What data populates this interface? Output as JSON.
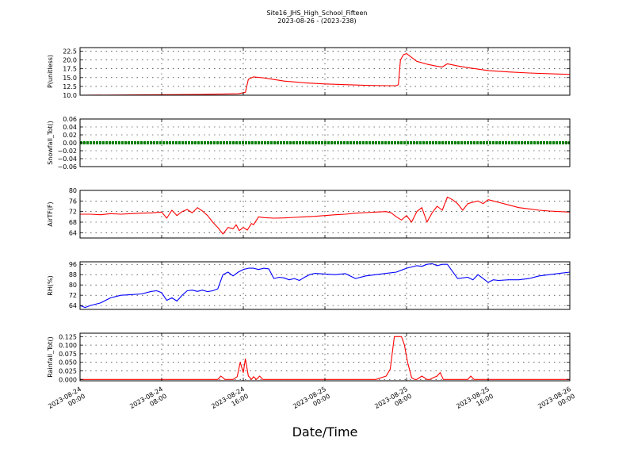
{
  "figure": {
    "title_line1": "Site16_JHS_High_School_Fifteen",
    "title_line2": "2023-08-26 - (2023-238)",
    "xlabel": "Date/Time"
  },
  "chart_data": [
    {
      "type": "line",
      "id": "pu",
      "ylabel": "P(unitless)",
      "color": "#ff0000",
      "ylim": [
        10.0,
        23.5
      ],
      "yticks": [
        "10.0",
        "12.5",
        "15.0",
        "17.5",
        "20.0",
        "22.5"
      ],
      "ytick_values": [
        10.0,
        12.5,
        15.0,
        17.5,
        20.0,
        22.5
      ],
      "xlim": [
        0,
        48
      ],
      "grid": true,
      "series": [
        {
          "x": [
            0,
            6,
            12,
            15.5,
            16.2,
            16.5,
            17,
            18,
            20,
            22,
            24,
            26,
            28,
            30,
            31,
            31.2,
            31.4,
            31.7,
            32,
            33,
            34,
            35,
            35.5,
            36,
            37,
            38,
            40,
            42,
            44,
            46,
            48
          ],
          "y": [
            10.0,
            10.1,
            10.2,
            10.4,
            10.8,
            14.5,
            15.2,
            14.9,
            14.0,
            13.5,
            13.2,
            13.0,
            12.8,
            12.7,
            12.7,
            13.0,
            20.0,
            21.5,
            21.8,
            19.6,
            18.8,
            18.2,
            18.0,
            18.9,
            18.3,
            17.8,
            17.0,
            16.6,
            16.3,
            16.1,
            15.9
          ]
        }
      ]
    },
    {
      "type": "line",
      "id": "snow",
      "ylabel": "Snowfall_Tot()",
      "color": "#008000",
      "ylim": [
        -0.06,
        0.06
      ],
      "yticks": [
        "−0.06",
        "−0.04",
        "−0.02",
        "0.00",
        "0.02",
        "0.04",
        "0.06"
      ],
      "ytick_values": [
        -0.06,
        -0.04,
        -0.02,
        0.0,
        0.02,
        0.04,
        0.06
      ],
      "xlim": [
        0,
        48
      ],
      "grid": true,
      "series": [
        {
          "x": [
            0,
            48
          ],
          "y": [
            0,
            0
          ]
        }
      ]
    },
    {
      "type": "line",
      "id": "airtf",
      "ylabel": "AirTF(F)",
      "color": "#ff0000",
      "ylim": [
        62,
        80
      ],
      "yticks": [
        "64",
        "68",
        "72",
        "76",
        "80"
      ],
      "ytick_values": [
        64,
        68,
        72,
        76,
        80
      ],
      "xlim": [
        0,
        48
      ],
      "grid": true,
      "series": [
        {
          "x": [
            0,
            1,
            2,
            3,
            4,
            5,
            6,
            7,
            8,
            8.5,
            9,
            9.5,
            10,
            10.5,
            11,
            11.5,
            12,
            12.5,
            13,
            13.5,
            14,
            14.5,
            15,
            15.3,
            15.6,
            16,
            16.4,
            16.8,
            17,
            17.5,
            18,
            19,
            20,
            21,
            22,
            23,
            24,
            25,
            26,
            27,
            28,
            29,
            30,
            30.5,
            31,
            31.5,
            32,
            32.5,
            33,
            33.5,
            34,
            34.5,
            35,
            35.5,
            36,
            36.5,
            37,
            37.5,
            38,
            38.5,
            39,
            39.5,
            40,
            40.5,
            41,
            42,
            43,
            44,
            45,
            46,
            47,
            48
          ],
          "y": [
            71,
            71,
            70.8,
            71.2,
            71,
            71.2,
            71.4,
            71.5,
            71.8,
            69.5,
            72.5,
            70.5,
            72,
            72.8,
            71.5,
            73.5,
            72.2,
            70.5,
            68,
            66,
            63.5,
            66,
            65.5,
            67,
            64.8,
            66,
            65,
            67.5,
            67,
            70,
            69.7,
            69.5,
            69.6,
            69.8,
            70,
            70.2,
            70.5,
            70.8,
            71,
            71.4,
            71.6,
            71.8,
            72,
            71.5,
            70,
            68.8,
            70.5,
            68,
            72,
            73.5,
            68,
            71.5,
            74,
            72.5,
            77.5,
            76.5,
            75,
            72.5,
            75,
            75.5,
            76,
            75,
            76.5,
            76,
            75.5,
            74.5,
            73.5,
            73,
            72.5,
            72.2,
            72,
            71.8
          ]
        }
      ]
    },
    {
      "type": "line",
      "id": "rh",
      "ylabel": "RH(%)",
      "color": "#0000ff",
      "ylim": [
        61,
        98
      ],
      "yticks": [
        "64",
        "72",
        "80",
        "88",
        "96"
      ],
      "ytick_values": [
        64,
        72,
        80,
        88,
        96
      ],
      "xlim": [
        0,
        48
      ],
      "grid": true,
      "series": [
        {
          "x": [
            0,
            0.5,
            1,
            2,
            3,
            4,
            5,
            6,
            7,
            7.5,
            8,
            8.5,
            9,
            9.5,
            10,
            10.5,
            11,
            11.5,
            12,
            12.5,
            13,
            13.5,
            14,
            14.5,
            15,
            15.5,
            16,
            16.5,
            17,
            17.5,
            18,
            18.5,
            19,
            19.5,
            20,
            20.5,
            21,
            21.5,
            22,
            22.5,
            23,
            24,
            25,
            26,
            27,
            28,
            29,
            30,
            31,
            32,
            32.5,
            33,
            33.5,
            34,
            34.5,
            35,
            35.5,
            36,
            37,
            38,
            38.5,
            39,
            39.5,
            40,
            40.5,
            41,
            42,
            43,
            44,
            45,
            46,
            47,
            48
          ],
          "y": [
            64,
            62.5,
            64,
            66,
            70,
            72,
            72.5,
            73,
            75,
            75.5,
            74,
            68,
            70,
            67.5,
            72,
            75.5,
            76,
            75,
            76,
            74.8,
            75.5,
            77,
            88,
            90,
            87,
            90,
            92,
            93,
            93,
            92,
            93,
            92.5,
            85,
            86,
            85.5,
            84,
            85,
            83.5,
            86,
            88,
            89,
            88.5,
            88,
            88.8,
            85,
            87,
            88,
            89,
            90,
            93,
            94,
            95,
            94.5,
            96,
            96.5,
            95,
            96,
            96,
            85,
            86,
            84,
            88,
            85,
            82,
            84,
            83.5,
            84,
            84,
            85,
            87,
            88,
            89,
            90
          ]
        }
      ]
    },
    {
      "type": "line",
      "id": "rain",
      "ylabel": "Rainfall_Tot()",
      "color": "#ff0000",
      "ylim": [
        -0.004,
        0.135
      ],
      "yticks": [
        "0.000",
        "0.025",
        "0.050",
        "0.075",
        "0.100",
        "0.125"
      ],
      "ytick_values": [
        0.0,
        0.025,
        0.05,
        0.075,
        0.1,
        0.125
      ],
      "xlim": [
        0,
        48
      ],
      "grid": true,
      "series": [
        {
          "x": [
            0,
            13.5,
            13.8,
            14.2,
            15,
            15.4,
            15.7,
            16,
            16.2,
            16.5,
            16.8,
            17,
            17.3,
            17.6,
            17.9,
            18.3,
            29,
            30,
            30.4,
            30.8,
            31.2,
            31.5,
            31.8,
            32.1,
            32.5,
            32.8,
            33,
            33.5,
            34,
            34.3,
            34.6,
            35,
            35.3,
            35.6,
            36,
            36.3,
            36.6,
            37,
            37.3,
            38,
            38.3,
            38.6,
            39,
            48
          ],
          "y": [
            0,
            0,
            0.01,
            0,
            0,
            0.008,
            0.05,
            0.02,
            0.06,
            0.01,
            0,
            0.008,
            0,
            0.01,
            0,
            0,
            0,
            0.01,
            0.03,
            0.125,
            0.125,
            0.125,
            0.1,
            0.05,
            0.005,
            0,
            0,
            0.01,
            0,
            0,
            0.005,
            0.01,
            0.02,
            0,
            0,
            0,
            0,
            0,
            0,
            0,
            0.01,
            0,
            0,
            0
          ]
        }
      ]
    }
  ],
  "xaxis": {
    "tick_hours": [
      0,
      8,
      16,
      24,
      32,
      40,
      48
    ],
    "tick_labels": [
      [
        "2023-08-24",
        "00:00"
      ],
      [
        "2023-08-24",
        "08:00"
      ],
      [
        "2023-08-24",
        "16:00"
      ],
      [
        "2023-08-25",
        "00:00"
      ],
      [
        "2023-08-25",
        "08:00"
      ],
      [
        "2023-08-25",
        "16:00"
      ],
      [
        "2023-08-26",
        "00:00"
      ]
    ]
  }
}
